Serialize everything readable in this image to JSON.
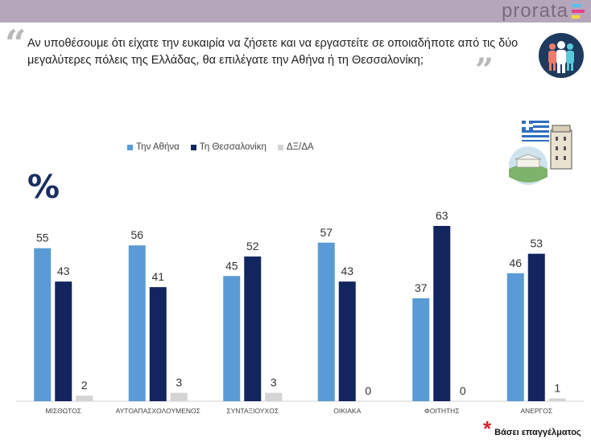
{
  "brand": {
    "name": "prorata"
  },
  "question": "Αν υποθέσουμε ότι είχατε την ευκαιρία να ζήσετε και να εργαστείτε σε οποιαδήποτε από τις δύο μεγαλύτερες πόλεις της Ελλάδας, θα επιλέγατε την Αθήνα ή τη Θεσσαλονίκη;",
  "icons": {
    "quote_open": "quote-open-icon",
    "quote_close": "quote-close-icon",
    "people": "people-icon",
    "flag": "greek-flag-icon",
    "tower": "white-tower-icon",
    "acropolis": "acropolis-icon"
  },
  "unit_label": "%",
  "footnote": {
    "mark": "*",
    "text": "Βάσει επαγγέλματος"
  },
  "colors": {
    "athens": "#5b9bd5",
    "thessaloniki": "#12255e",
    "dkna": "#d4d4d4",
    "topbar": "#b6a6bb"
  },
  "chart_data": {
    "type": "bar",
    "categories": [
      "ΜΙΣΘΩΤΟΣ",
      "ΑΥΤΟΑΠΑΣΧΟΛΟΥΜΕΝΟΣ",
      "ΣΥΝΤΑΞΙΟΥΧΟΣ",
      "ΟΙΚΙΑΚΑ",
      "ΦΟΙΤΗΤΗΣ",
      "ΑΝΕΡΓΟΣ"
    ],
    "series": [
      {
        "name": "Την Αθήνα",
        "values": [
          55,
          56,
          45,
          57,
          37,
          46
        ]
      },
      {
        "name": "Τη Θεσσαλονίκη",
        "values": [
          43,
          41,
          52,
          43,
          63,
          53
        ]
      },
      {
        "name": "ΔΞ/ΔΑ",
        "values": [
          2,
          3,
          3,
          0,
          0,
          1
        ]
      }
    ],
    "legend_position": "top",
    "grid": false,
    "ylim": [
      0,
      70
    ]
  }
}
